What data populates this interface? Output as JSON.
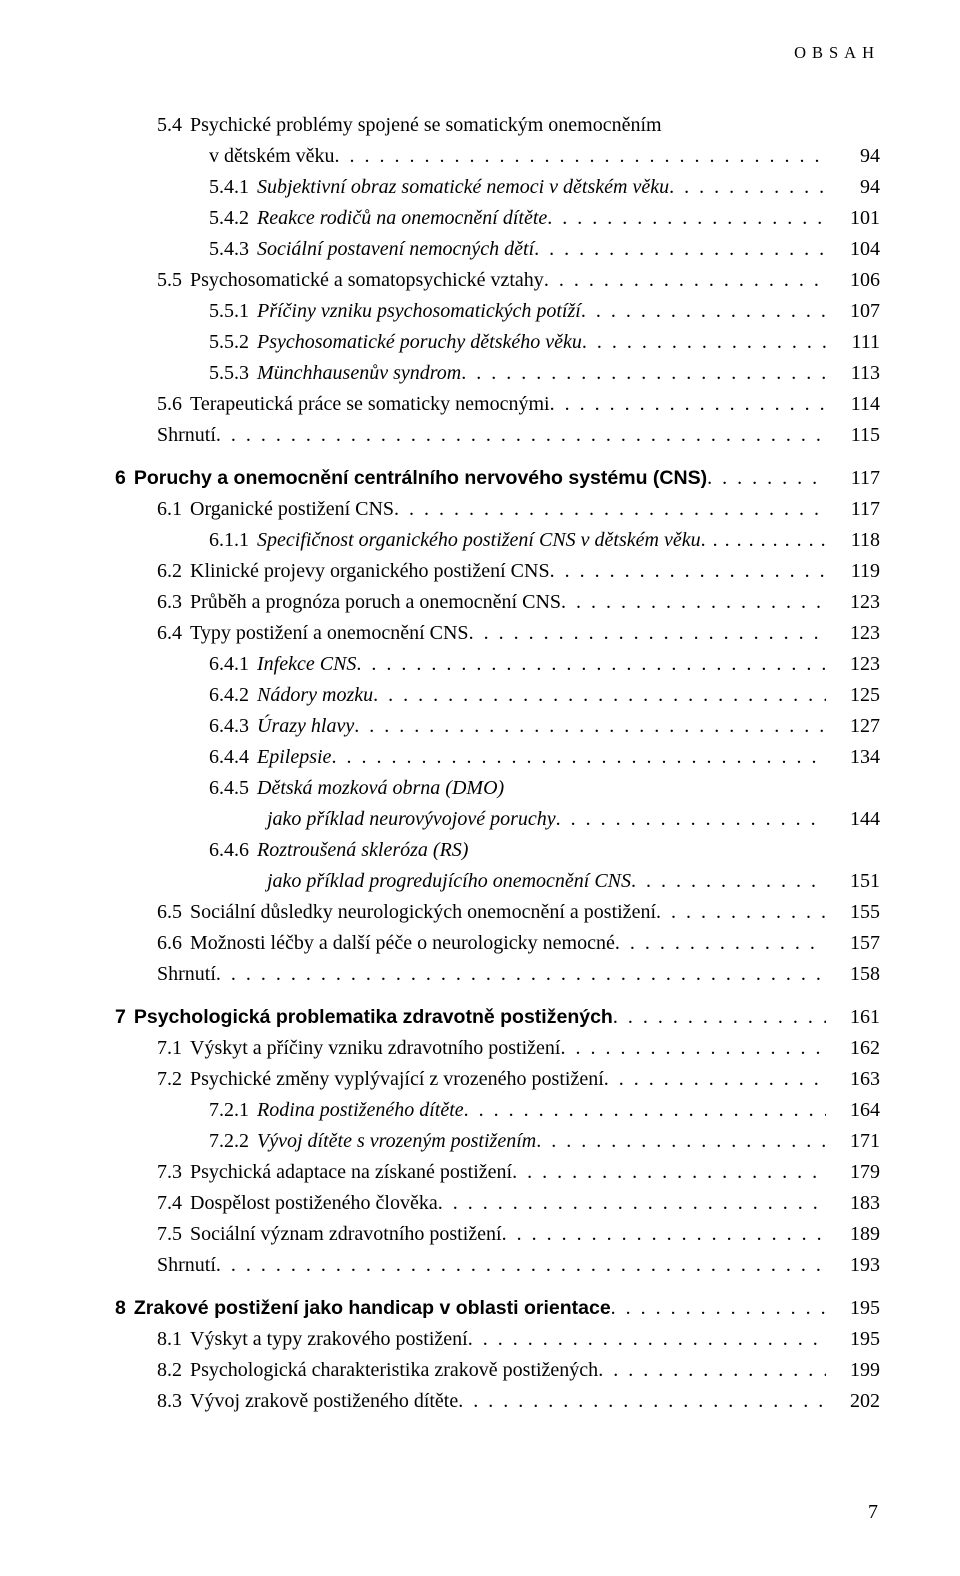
{
  "running_head": "OBSAH",
  "page_number": "7",
  "entries": [
    {
      "indent": 1,
      "num": "5.4",
      "text": "Psychické problémy spojené se somatickým onemocněním",
      "wrap": "v dětském věku",
      "page": "94"
    },
    {
      "indent": 2,
      "num": "5.4.1",
      "text": "Subjektivní obraz somatické nemoci v dětském věku",
      "italic": true,
      "page": "94"
    },
    {
      "indent": 2,
      "num": "5.4.2",
      "text": "Reakce rodičů na onemocnění dítěte",
      "italic": true,
      "page": "101"
    },
    {
      "indent": 2,
      "num": "5.4.3",
      "text": "Sociální postavení nemocných dětí",
      "italic": true,
      "page": "104"
    },
    {
      "indent": 1,
      "num": "5.5",
      "text": "Psychosomatické a somatopsychické vztahy",
      "page": "106"
    },
    {
      "indent": 2,
      "num": "5.5.1",
      "text": "Příčiny vzniku psychosomatických potíží",
      "italic": true,
      "page": "107"
    },
    {
      "indent": 2,
      "num": "5.5.2",
      "text": "Psychosomatické poruchy dětského věku",
      "italic": true,
      "page": "111"
    },
    {
      "indent": 2,
      "num": "5.5.3",
      "text": "Münchhausenův syndrom",
      "italic": true,
      "page": "113"
    },
    {
      "indent": 1,
      "num": "5.6",
      "text": "Terapeutická práce se somaticky nemocnými",
      "page": "114"
    },
    {
      "indent": 1,
      "num": "",
      "text": "Shrnutí",
      "page": "115",
      "blockend": true
    },
    {
      "indent": 0,
      "num": "6",
      "text": "Poruchy a onemocnění centrálního nervového systému (CNS)",
      "bold": true,
      "page": "117"
    },
    {
      "indent": 1,
      "num": "6.1",
      "text": "Organické postižení CNS",
      "page": "117"
    },
    {
      "indent": 2,
      "num": "6.1.1",
      "text": "Specifičnost organického postižení CNS v dětském věku",
      "italic": true,
      "page": "118",
      "tight": true
    },
    {
      "indent": 1,
      "num": "6.2",
      "text": "Klinické projevy organického postižení CNS",
      "page": "119"
    },
    {
      "indent": 1,
      "num": "6.3",
      "text": "Průběh a prognóza poruch a onemocnění CNS",
      "page": "123"
    },
    {
      "indent": 1,
      "num": "6.4",
      "text": "Typy postižení a onemocnění CNS",
      "page": "123"
    },
    {
      "indent": 2,
      "num": "6.4.1",
      "text": "Infekce CNS",
      "italic": true,
      "page": "123"
    },
    {
      "indent": 2,
      "num": "6.4.2",
      "text": "Nádory mozku",
      "italic": true,
      "page": "125"
    },
    {
      "indent": 2,
      "num": "6.4.3",
      "text": "Úrazy hlavy",
      "italic": true,
      "page": "127"
    },
    {
      "indent": 2,
      "num": "6.4.4",
      "text": "Epilepsie",
      "italic": true,
      "page": "134"
    },
    {
      "indent": 2,
      "num": "6.4.5",
      "text": "Dětská mozková obrna (DMO)",
      "italic": true,
      "wrap": "jako příklad neurovývojové poruchy",
      "wrapitalic": true,
      "page": "144"
    },
    {
      "indent": 2,
      "num": "6.4.6",
      "text": "Roztroušená skleróza (RS)",
      "italic": true,
      "wrap": "jako příklad progredujícího onemocnění CNS",
      "wrapitalic": true,
      "page": "151"
    },
    {
      "indent": 1,
      "num": "6.5",
      "text": "Sociální důsledky neurologických onemocnění a postižení",
      "page": "155"
    },
    {
      "indent": 1,
      "num": "6.6",
      "text": "Možnosti léčby a další péče o neurologicky nemocné",
      "page": "157"
    },
    {
      "indent": 1,
      "num": "",
      "text": "Shrnutí",
      "page": "158",
      "blockend": true
    },
    {
      "indent": 0,
      "num": "7",
      "text": "Psychologická problematika zdravotně postižených",
      "bold": true,
      "page": "161"
    },
    {
      "indent": 1,
      "num": "7.1",
      "text": "Výskyt a příčiny vzniku zdravotního postižení",
      "page": "162"
    },
    {
      "indent": 1,
      "num": "7.2",
      "text": "Psychické změny vyplývající z vrozeného postižení",
      "page": "163"
    },
    {
      "indent": 2,
      "num": "7.2.1",
      "text": "Rodina postiženého dítěte",
      "italic": true,
      "page": "164"
    },
    {
      "indent": 2,
      "num": "7.2.2",
      "text": "Vývoj dítěte s vrozeným postižením",
      "italic": true,
      "page": "171"
    },
    {
      "indent": 1,
      "num": "7.3",
      "text": "Psychická adaptace na získané postižení",
      "page": "179"
    },
    {
      "indent": 1,
      "num": "7.4",
      "text": "Dospělost postiženého člověka",
      "page": "183"
    },
    {
      "indent": 1,
      "num": "7.5",
      "text": "Sociální význam zdravotního postižení",
      "page": "189"
    },
    {
      "indent": 1,
      "num": "",
      "text": "Shrnutí",
      "page": "193",
      "blockend": true
    },
    {
      "indent": 0,
      "num": "8",
      "text": "Zrakové postižení jako handicap v oblasti orientace",
      "bold": true,
      "page": "195"
    },
    {
      "indent": 1,
      "num": "8.1",
      "text": "Výskyt a typy zrakového postižení",
      "page": "195"
    },
    {
      "indent": 1,
      "num": "8.2",
      "text": "Psychologická charakteristika zrakově postižených",
      "page": "199"
    },
    {
      "indent": 1,
      "num": "8.3",
      "text": "Vývoj zrakově postiženého dítěte",
      "page": "202"
    }
  ]
}
